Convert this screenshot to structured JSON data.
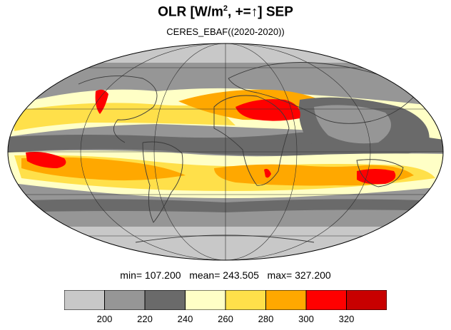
{
  "title": {
    "prefix": "OLR [W/m",
    "superscript": "2",
    "suffix": ", +=↑] SEP"
  },
  "subtitle": "CERES_EBAF((2020-2020))",
  "stats": {
    "text": "min= 107.200   mean= 243.505   max= 327.200",
    "min": 107.2,
    "mean": 243.505,
    "max": 327.2
  },
  "colorbar": {
    "colors": [
      "#c8c8c8",
      "#969696",
      "#6a6a6a",
      "#ffffc6",
      "#ffe04a",
      "#ffa800",
      "#ff0000",
      "#c80000"
    ],
    "tick_labels": [
      "200",
      "220",
      "240",
      "260",
      "280",
      "300",
      "320"
    ]
  },
  "chart_data": {
    "type": "heatmap",
    "projection": "mollweide",
    "variable": "OLR",
    "units": "W/m2",
    "season": "SEP",
    "levels": [
      200,
      220,
      240,
      260,
      280,
      300,
      320
    ],
    "min": 107.2,
    "mean": 243.505,
    "max": 327.2
  }
}
